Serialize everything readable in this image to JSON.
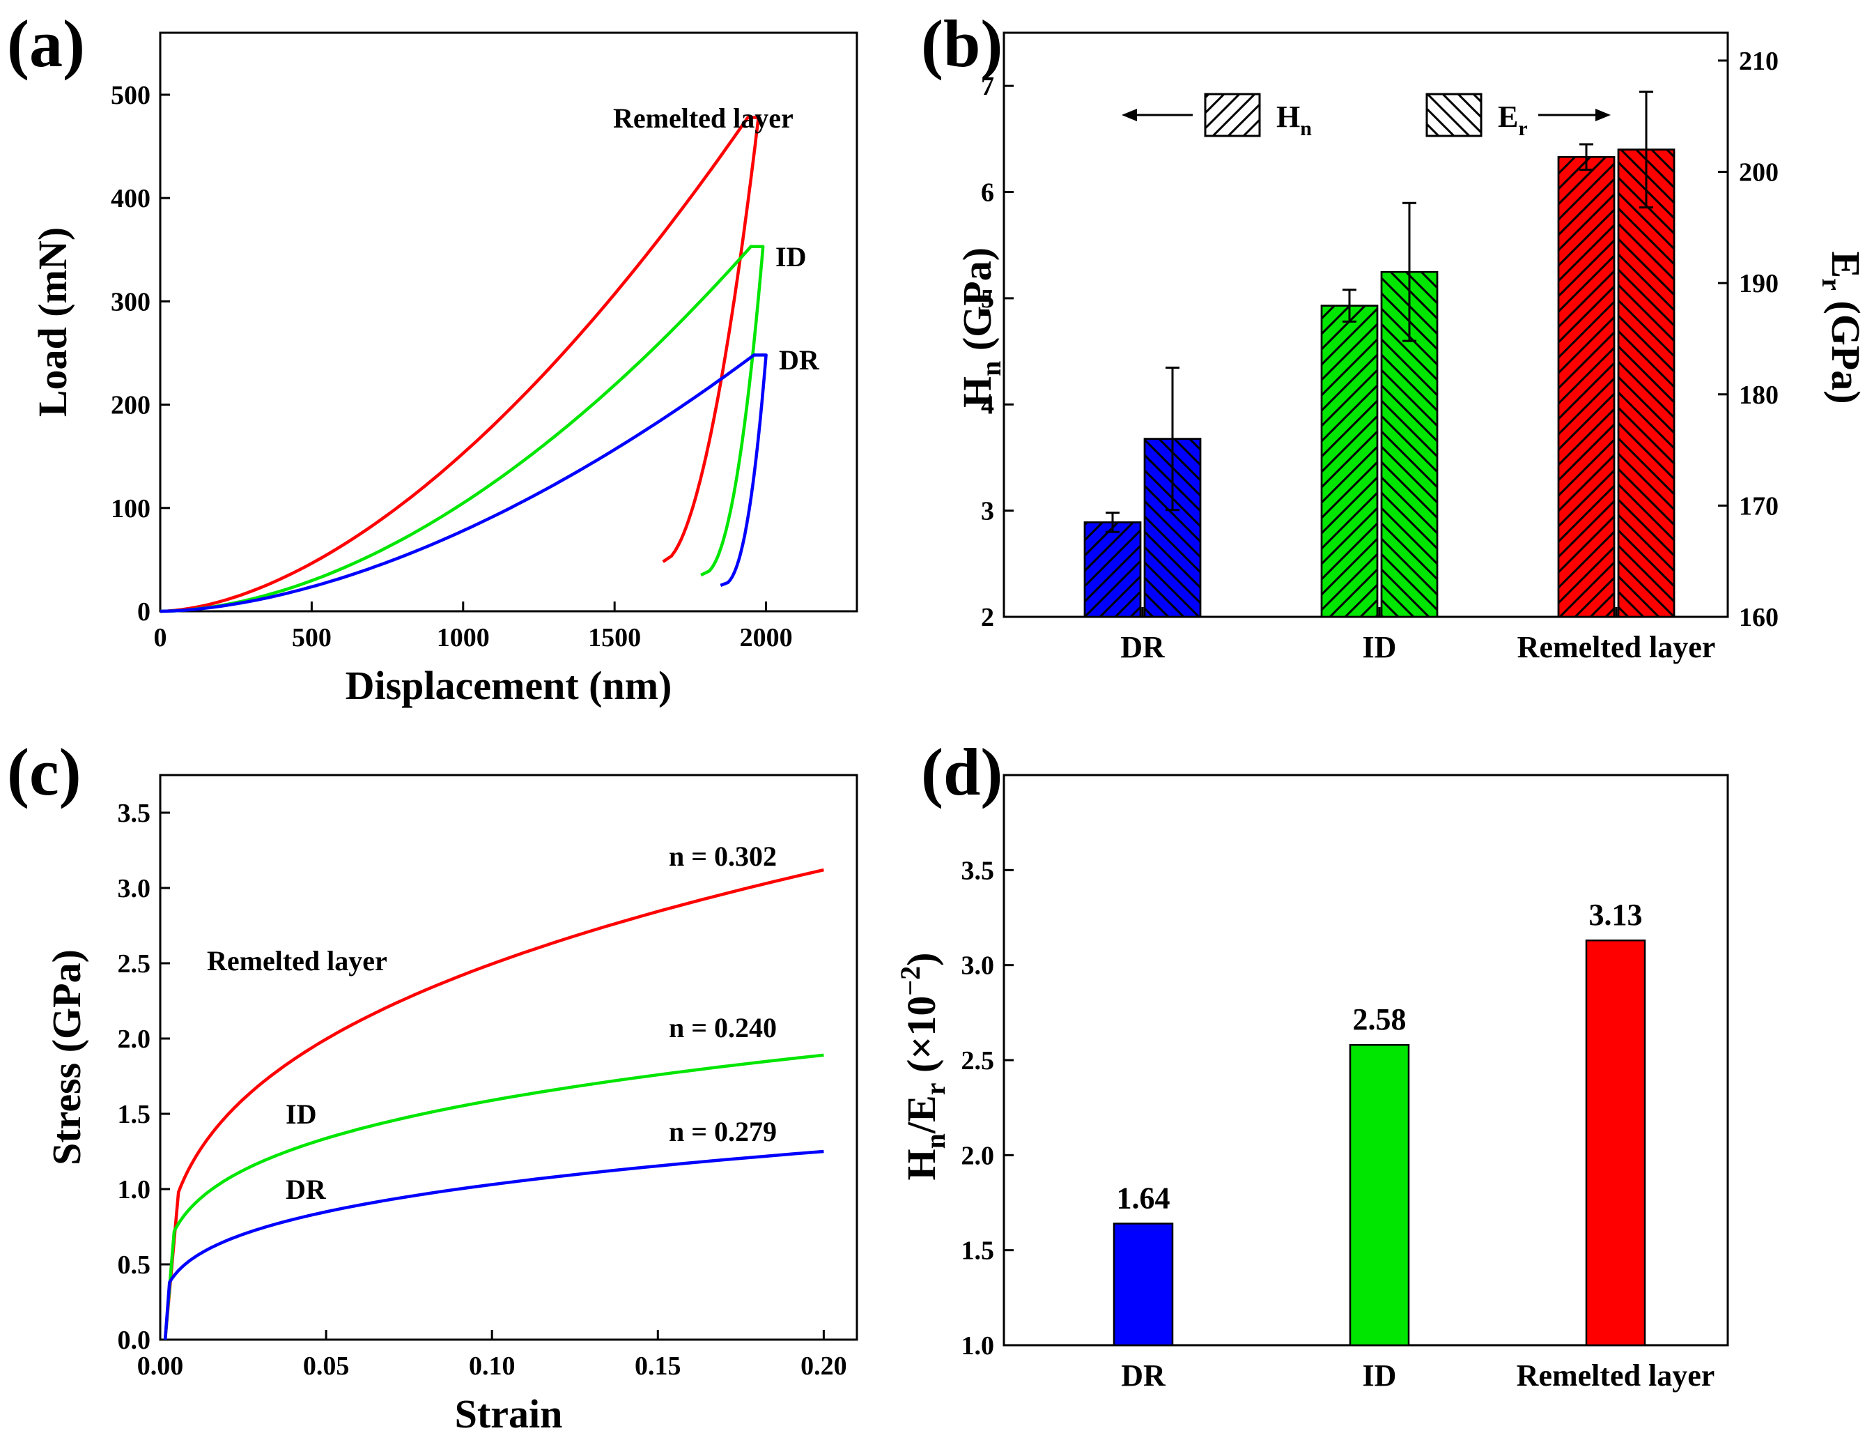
{
  "panel_labels": {
    "a": "(a)",
    "b": "(b)",
    "c": "(c)",
    "d": "(d)"
  },
  "chart_data": [
    {
      "panel": "a",
      "type": "line",
      "xlabel": "Displacement (nm)",
      "ylabel": "Load (mN)",
      "xlim": [
        0,
        2300
      ],
      "ylim": [
        0,
        560
      ],
      "xticks": [
        "0",
        "500",
        "1000",
        "1500",
        "2000"
      ],
      "yticks": [
        "0",
        "100",
        "200",
        "300",
        "400",
        "500"
      ],
      "series": [
        {
          "name": "Remelted layer",
          "color": "#ff0000",
          "label": "Remelted layer",
          "loading": {
            "x_max": 1940,
            "y_max": 478,
            "exponent": 1.72
          },
          "hold_x": 1975,
          "unload_end": [
            1660,
            48
          ],
          "unload_exponent": 1.8
        },
        {
          "name": "ID",
          "color": "#00e600",
          "label": "ID",
          "loading": {
            "x_max": 1950,
            "y_max": 353,
            "exponent": 1.82
          },
          "hold_x": 1990,
          "unload_end": [
            1785,
            35
          ],
          "unload_exponent": 2.2
        },
        {
          "name": "DR",
          "color": "#0000ff",
          "label": "DR",
          "loading": {
            "x_max": 1960,
            "y_max": 248,
            "exponent": 1.72
          },
          "hold_x": 2000,
          "unload_end": [
            1850,
            25
          ],
          "unload_exponent": 2.4
        }
      ]
    },
    {
      "panel": "b",
      "type": "bar",
      "categories": [
        "DR",
        "ID",
        "Remelted layer"
      ],
      "ylabel_left": {
        "main": "H",
        "sub": "n",
        "rest": " (GPa)"
      },
      "ylabel_right": {
        "main": "E",
        "sub": "r",
        "rest": " (GPa)"
      },
      "ylim_left": [
        2,
        7.5
      ],
      "ylim_right": [
        160,
        212.5
      ],
      "yticks_left": [
        "2",
        "3",
        "4",
        "5",
        "6",
        "7"
      ],
      "yticks_right": [
        "160",
        "170",
        "180",
        "190",
        "200",
        "210"
      ],
      "legend": [
        {
          "main": "H",
          "sub": "n",
          "arrow": "left"
        },
        {
          "main": "E",
          "sub": "r",
          "arrow": "right"
        }
      ],
      "colors": [
        "#0000ff",
        "#00e600",
        "#ff0000"
      ],
      "series": [
        {
          "name": "Hn",
          "axis": "left",
          "values": [
            2.89,
            4.93,
            6.33
          ],
          "errors": [
            0.09,
            0.15,
            0.12
          ]
        },
        {
          "name": "Er",
          "axis": "right",
          "values": [
            176.0,
            191.0,
            202.0
          ],
          "errors": [
            6.4,
            6.2,
            5.2
          ]
        }
      ]
    },
    {
      "panel": "c",
      "type": "line",
      "xlabel": "Strain",
      "ylabel": "Stress (GPa)",
      "xlim": [
        0,
        0.21
      ],
      "ylim": [
        0,
        3.75
      ],
      "xticks": [
        "0.00",
        "0.05",
        "0.10",
        "0.15",
        "0.20"
      ],
      "yticks": [
        "0.0",
        "0.5",
        "1.0",
        "1.5",
        "2.0",
        "2.5",
        "3.0",
        "3.5"
      ],
      "series": [
        {
          "name": "Remelted layer",
          "color": "#ff0000",
          "n_label": "n = 0.302",
          "yield_strain": 0.0055,
          "yield_stress": 0.98,
          "end_stress": 3.12
        },
        {
          "name": "ID",
          "color": "#00e600",
          "n_label": "n = 0.240",
          "yield_strain": 0.0042,
          "yield_stress": 0.72,
          "end_stress": 1.89
        },
        {
          "name": "DR",
          "color": "#0000ff",
          "n_label": "n = 0.279",
          "yield_strain": 0.0028,
          "yield_stress": 0.38,
          "end_stress": 1.25
        }
      ]
    },
    {
      "panel": "d",
      "type": "bar",
      "categories": [
        "DR",
        "ID",
        "Remelted layer"
      ],
      "values": [
        1.64,
        2.58,
        3.13
      ],
      "value_labels": [
        "1.64",
        "2.58",
        "3.13"
      ],
      "colors": [
        "#0000ff",
        "#00e600",
        "#ff0000"
      ],
      "ylabel": {
        "a": "H",
        "a_sub": "n",
        "b": "/E",
        "b_sub": "r",
        "c": " (×10",
        "c_sup": "−2",
        "d": ")"
      },
      "ylim": [
        1.0,
        4.0
      ],
      "yticks": [
        "1.0",
        "1.5",
        "2.0",
        "2.5",
        "3.0",
        "3.5"
      ]
    }
  ]
}
